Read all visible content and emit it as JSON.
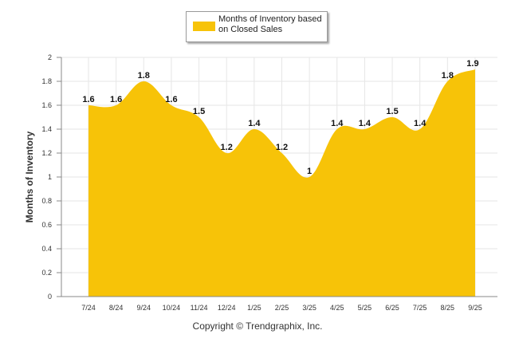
{
  "colors": {
    "fill": "#F7C308",
    "grid": "#e6e6e6",
    "axis": "#888888",
    "text": "#333333"
  },
  "legend": {
    "label": "Months of Inventory based on Closed Sales"
  },
  "copyright": "Copyright © Trendgraphix, Inc.",
  "chart_data": {
    "type": "area",
    "title": "",
    "xlabel": "",
    "ylabel": "Months of Inventory",
    "ylim": [
      0,
      2
    ],
    "yticks": [
      "0",
      "0.2",
      "0.4",
      "0.6",
      "0.8",
      "1",
      "1.2",
      "1.4",
      "1.6",
      "1.8",
      "2"
    ],
    "grid": true,
    "legend_position": "top-center",
    "categories": [
      "7/24",
      "8/24",
      "9/24",
      "10/24",
      "11/24",
      "12/24",
      "1/25",
      "2/25",
      "3/25",
      "4/25",
      "5/25",
      "6/25",
      "7/25",
      "8/25",
      "9/25"
    ],
    "series": [
      {
        "name": "Months of Inventory based on Closed Sales",
        "values": [
          1.6,
          1.6,
          1.8,
          1.6,
          1.5,
          1.2,
          1.4,
          1.2,
          1,
          1.4,
          1.4,
          1.5,
          1.4,
          1.8,
          1.9
        ],
        "labels": [
          "1.6",
          "1.6",
          "1.8",
          "1.6",
          "1.5",
          "1.2",
          "1.4",
          "1.2",
          "1",
          "1.4",
          "1.4",
          "1.5",
          "1.4",
          "1.8",
          "1.9"
        ]
      }
    ]
  }
}
